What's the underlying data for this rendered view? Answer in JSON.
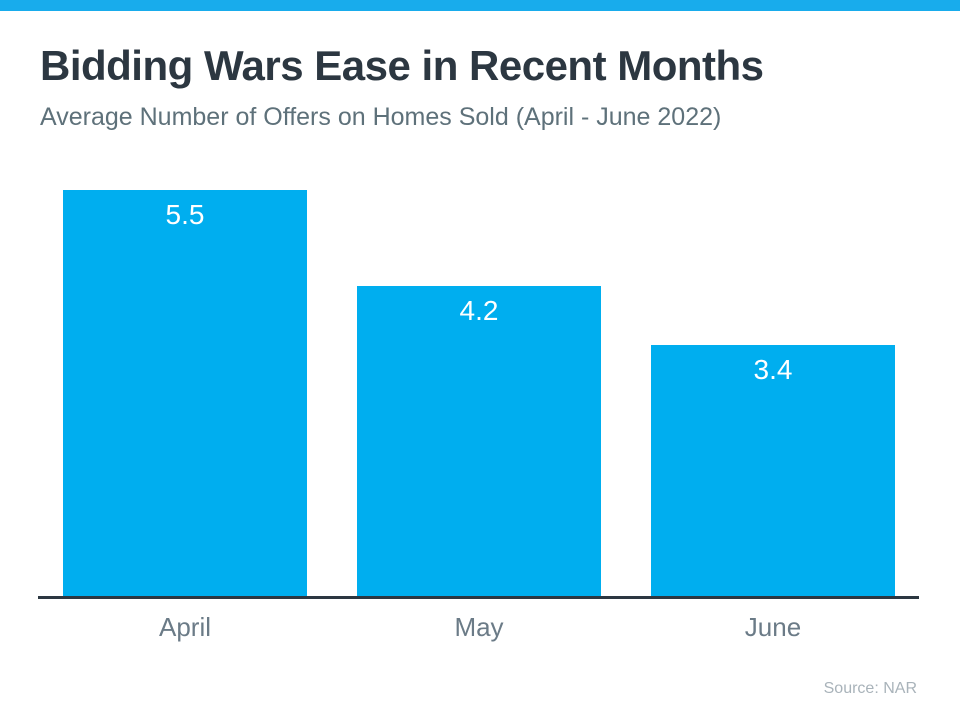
{
  "page": {
    "accent_bar_color": "#18ACEC",
    "background_color": "#FFFFFF"
  },
  "header": {
    "title": "Bidding Wars Ease in Recent Months",
    "subtitle": "Average Number of Offers on Homes Sold (April - June 2022)",
    "title_color": "#2C3741",
    "subtitle_color": "#5E717A"
  },
  "chart_data": {
    "type": "bar",
    "categories": [
      "April",
      "May",
      "June"
    ],
    "values": [
      5.5,
      4.2,
      3.4
    ],
    "title": "Bidding Wars Ease in Recent Months",
    "subtitle": "Average Number of Offers on Homes Sold (April - June 2022)",
    "xlabel": "",
    "ylabel": "",
    "ylim": [
      0,
      5.5
    ],
    "grid": false,
    "legend": false,
    "y_axis_visible": false,
    "x_axis_line_color": "#2C3741",
    "bar_color": "#00AEEF",
    "value_label_color": "#FFFFFF",
    "category_label_color": "#6B7B87",
    "value_labels": [
      "5.5",
      "4.2",
      "3.4"
    ]
  },
  "footer": {
    "source": "Source: NAR",
    "source_color": "#A9B3BA"
  }
}
